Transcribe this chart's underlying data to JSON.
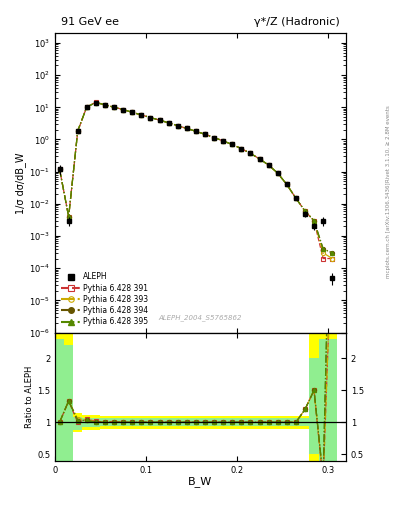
{
  "title_left": "91 GeV ee",
  "title_right": "γ*/Z (Hadronic)",
  "ylabel_main": "1/σ dσ/dB_W",
  "ylabel_ratio": "Ratio to ALEPH",
  "xlabel": "B_W",
  "watermark": "ALEPH_2004_S5765862",
  "right_label_top": "Rivet 3.1.10, ≥ 2.8M events",
  "right_label_bottom": "mcplots.cern.ch [arXiv:1306.3436]",
  "bw_centers": [
    0.005,
    0.015,
    0.025,
    0.035,
    0.045,
    0.055,
    0.065,
    0.075,
    0.085,
    0.095,
    0.105,
    0.115,
    0.125,
    0.135,
    0.145,
    0.155,
    0.165,
    0.175,
    0.185,
    0.195,
    0.205,
    0.215,
    0.225,
    0.235,
    0.245,
    0.255,
    0.265,
    0.275,
    0.285,
    0.295,
    0.305
  ],
  "aleph_y": [
    0.12,
    0.003,
    1.8,
    10.0,
    14.0,
    12.0,
    10.0,
    8.5,
    7.0,
    5.8,
    4.8,
    4.0,
    3.3,
    2.7,
    2.2,
    1.8,
    1.45,
    1.15,
    0.9,
    0.7,
    0.52,
    0.37,
    0.25,
    0.16,
    0.09,
    0.04,
    0.015,
    0.005,
    0.002,
    0.003,
    5e-05
  ],
  "aleph_yerr_lo": [
    0.04,
    0.001,
    0.2,
    0.5,
    0.6,
    0.5,
    0.4,
    0.3,
    0.25,
    0.2,
    0.15,
    0.12,
    0.1,
    0.08,
    0.07,
    0.06,
    0.05,
    0.04,
    0.03,
    0.025,
    0.02,
    0.015,
    0.01,
    0.007,
    0.005,
    0.003,
    0.002,
    0.001,
    0.0005,
    0.001,
    2e-05
  ],
  "aleph_yerr_hi": [
    0.04,
    0.001,
    0.2,
    0.5,
    0.6,
    0.5,
    0.4,
    0.3,
    0.25,
    0.2,
    0.15,
    0.12,
    0.1,
    0.08,
    0.07,
    0.06,
    0.05,
    0.04,
    0.03,
    0.025,
    0.02,
    0.015,
    0.01,
    0.007,
    0.005,
    0.003,
    0.002,
    0.001,
    0.0005,
    0.001,
    2e-05
  ],
  "py391_y": [
    0.12,
    0.004,
    1.8,
    10.5,
    14.2,
    12.1,
    10.1,
    8.5,
    7.0,
    5.8,
    4.8,
    4.0,
    3.3,
    2.7,
    2.2,
    1.8,
    1.45,
    1.15,
    0.9,
    0.7,
    0.52,
    0.37,
    0.25,
    0.16,
    0.09,
    0.04,
    0.015,
    0.006,
    0.003,
    0.0002,
    0.0002
  ],
  "py393_y": [
    0.12,
    0.004,
    1.9,
    10.4,
    14.1,
    12.0,
    10.0,
    8.5,
    7.0,
    5.8,
    4.8,
    4.0,
    3.3,
    2.7,
    2.2,
    1.8,
    1.45,
    1.15,
    0.9,
    0.7,
    0.52,
    0.37,
    0.25,
    0.16,
    0.09,
    0.04,
    0.015,
    0.006,
    0.003,
    0.0003,
    0.0002
  ],
  "py394_y": [
    0.12,
    0.004,
    1.85,
    10.3,
    14.0,
    12.0,
    10.0,
    8.5,
    7.0,
    5.8,
    4.8,
    4.0,
    3.3,
    2.7,
    2.2,
    1.8,
    1.45,
    1.15,
    0.9,
    0.7,
    0.52,
    0.37,
    0.25,
    0.16,
    0.09,
    0.04,
    0.015,
    0.006,
    0.003,
    0.0004,
    0.0003
  ],
  "py395_y": [
    0.12,
    0.004,
    1.85,
    10.3,
    14.0,
    12.0,
    10.0,
    8.5,
    7.0,
    5.8,
    4.8,
    4.0,
    3.3,
    2.7,
    2.2,
    1.8,
    1.45,
    1.15,
    0.9,
    0.7,
    0.52,
    0.37,
    0.25,
    0.16,
    0.09,
    0.04,
    0.015,
    0.006,
    0.003,
    0.0004,
    0.0003
  ],
  "color_391": "#cc3333",
  "color_393": "#ccaa00",
  "color_394": "#665500",
  "color_395": "#558800",
  "bg_color": "#ffffff",
  "ratio_ylim": [
    0.4,
    2.4
  ],
  "main_ylim_log": [
    1e-06,
    2000.0
  ],
  "xlim": [
    0.0,
    0.32
  ],
  "yellow_band_lo": [
    0.4,
    0.4,
    0.85,
    0.88,
    0.88,
    0.9,
    0.9,
    0.9,
    0.9,
    0.9,
    0.9,
    0.9,
    0.9,
    0.9,
    0.9,
    0.9,
    0.9,
    0.9,
    0.9,
    0.9,
    0.9,
    0.9,
    0.9,
    0.9,
    0.9,
    0.9,
    0.9,
    0.9,
    0.4,
    0.4,
    0.4
  ],
  "yellow_band_hi": [
    2.4,
    2.4,
    1.15,
    1.12,
    1.12,
    1.1,
    1.1,
    1.1,
    1.1,
    1.1,
    1.1,
    1.1,
    1.1,
    1.1,
    1.1,
    1.1,
    1.1,
    1.1,
    1.1,
    1.1,
    1.1,
    1.1,
    1.1,
    1.1,
    1.1,
    1.1,
    1.1,
    1.1,
    2.4,
    2.4,
    2.4
  ],
  "green_band_lo": [
    0.4,
    0.4,
    0.88,
    0.92,
    0.93,
    0.94,
    0.94,
    0.94,
    0.94,
    0.94,
    0.94,
    0.94,
    0.94,
    0.94,
    0.94,
    0.94,
    0.94,
    0.94,
    0.94,
    0.94,
    0.94,
    0.94,
    0.94,
    0.94,
    0.94,
    0.94,
    0.94,
    0.94,
    0.5,
    0.4,
    0.4
  ],
  "green_band_hi": [
    2.3,
    2.2,
    1.08,
    1.06,
    1.06,
    1.06,
    1.06,
    1.06,
    1.06,
    1.06,
    1.06,
    1.06,
    1.06,
    1.06,
    1.06,
    1.06,
    1.06,
    1.06,
    1.06,
    1.06,
    1.06,
    1.06,
    1.06,
    1.06,
    1.06,
    1.06,
    1.06,
    1.06,
    2.0,
    2.3,
    2.3
  ]
}
